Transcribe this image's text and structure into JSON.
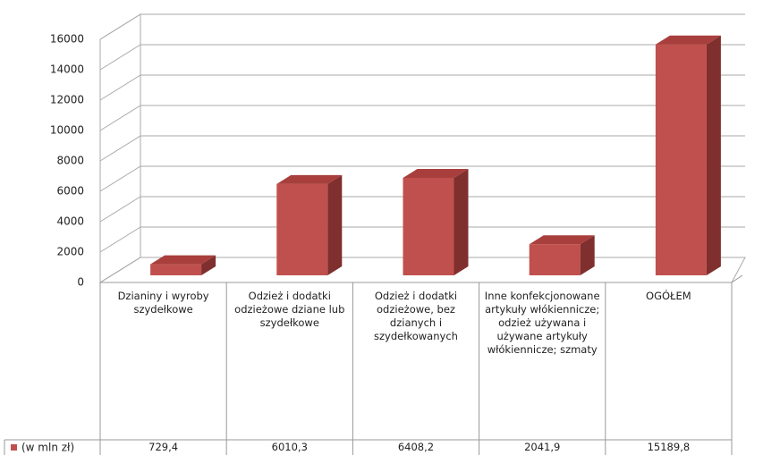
{
  "chart_data": {
    "type": "bar3d",
    "categories": [
      "Dzianiny i wyroby szydełkowe",
      "Odzież i dodatki odzieżowe dziane lub szydełkowe",
      "Odzież i dodatki odzieżowe, bez dzianych i szydełkowanych",
      "Inne konfekcjonowane artykuły włókiennicze; odzież używana i używane artykuły włókiennicze; szmaty",
      "OGÓŁEM"
    ],
    "series": [
      {
        "name": "(w mln zł)",
        "color": "#c0504d",
        "values": [
          729.4,
          6010.3,
          6408.2,
          2041.9,
          15189.8
        ],
        "value_labels": [
          "729,4",
          "6010,3",
          "6408,2",
          "2041,9",
          "15189,8"
        ]
      }
    ],
    "ylim": [
      0,
      16000
    ],
    "yticks": [
      0,
      2000,
      4000,
      6000,
      8000,
      10000,
      12000,
      14000,
      16000
    ],
    "grid": true,
    "legend": "table"
  }
}
